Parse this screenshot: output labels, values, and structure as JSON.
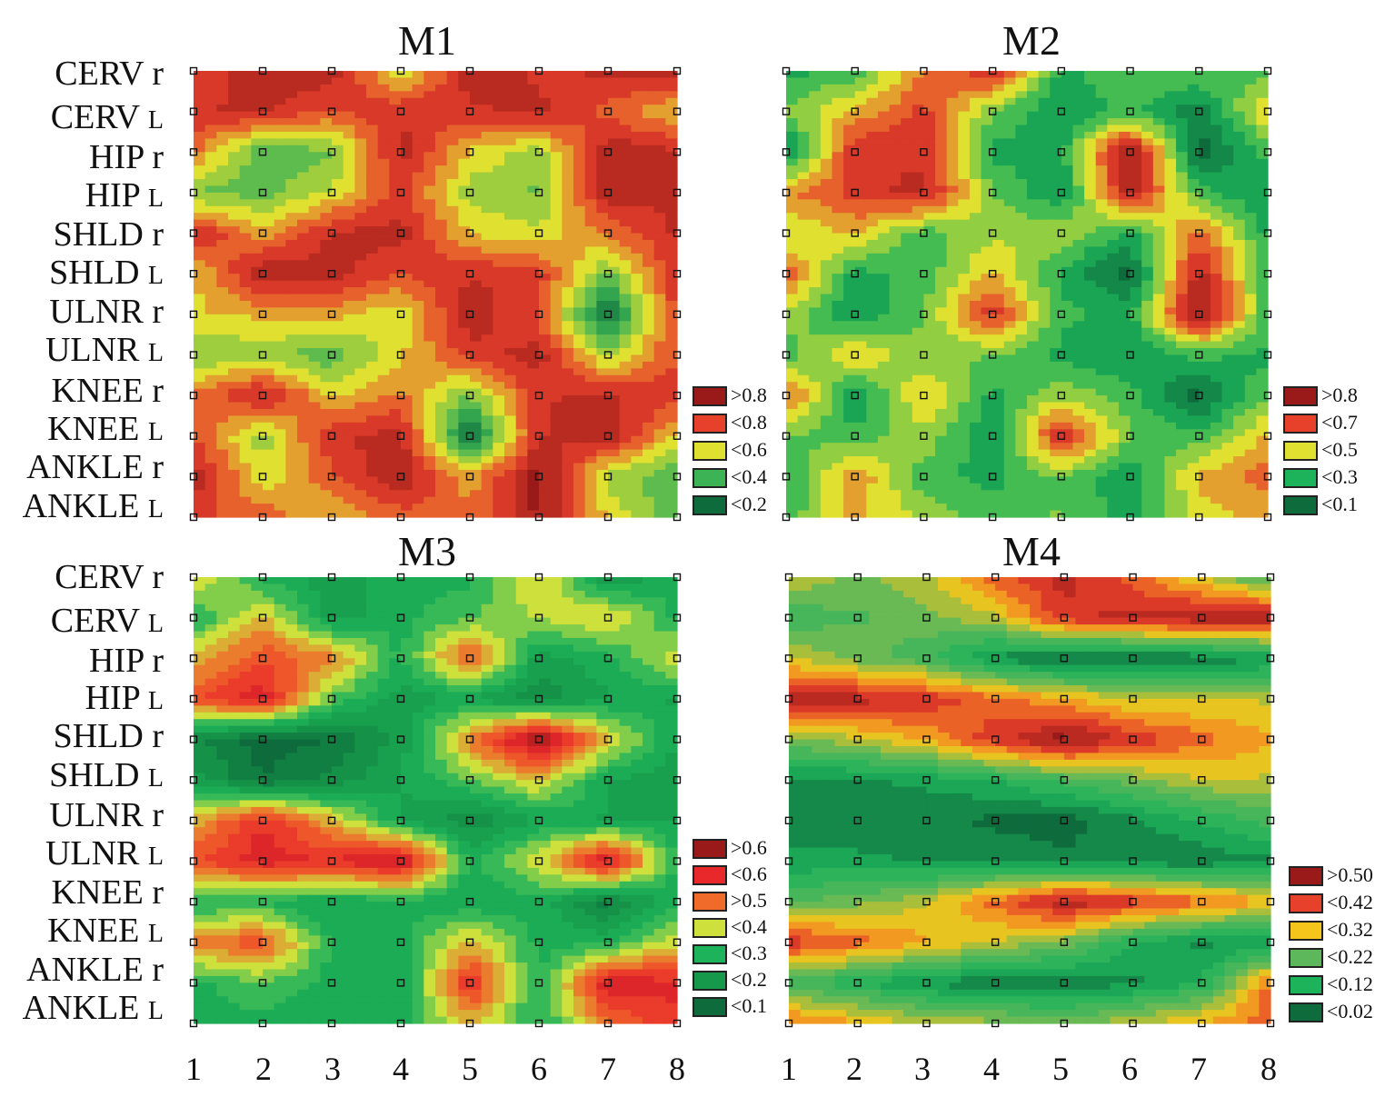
{
  "figure": {
    "row_labels": [
      {
        "name": "CERV",
        "side": "r"
      },
      {
        "name": "CERV",
        "side": "L"
      },
      {
        "name": "HIP",
        "side": "r"
      },
      {
        "name": "HIP",
        "side": "L"
      },
      {
        "name": "SHLD",
        "side": "r"
      },
      {
        "name": "SHLD",
        "side": "L"
      },
      {
        "name": "ULNR",
        "side": "r"
      },
      {
        "name": "ULNR",
        "side": "L"
      },
      {
        "name": "KNEE",
        "side": "r"
      },
      {
        "name": "KNEE",
        "side": "L"
      },
      {
        "name": "ANKLE",
        "side": "r"
      },
      {
        "name": "ANKLE",
        "side": "L"
      }
    ],
    "col_labels": [
      "1",
      "2",
      "3",
      "4",
      "5",
      "6",
      "7",
      "8"
    ]
  },
  "chart_data": [
    {
      "type": "heatmap",
      "title": "M1",
      "x": [
        1,
        2,
        3,
        4,
        5,
        6,
        7,
        8
      ],
      "y": [
        "CERV r",
        "CERV L",
        "HIP r",
        "HIP L",
        "SHLD r",
        "SHLD L",
        "ULNR r",
        "ULNR L",
        "KNEE r",
        "KNEE L",
        "ANKLE r",
        "ANKLE L"
      ],
      "legend": [
        {
          "label": ">0.8",
          "color": "#9a1a1a"
        },
        {
          "label": "<0.8",
          "color": "#e8412b"
        },
        {
          "label": "<0.6",
          "color": "#e0e030"
        },
        {
          "label": "<0.4",
          "color": "#3cb354"
        },
        {
          "label": "<0.2",
          "color": "#0e6b3c"
        }
      ],
      "values": [
        [
          0.75,
          0.82,
          0.84,
          0.5,
          0.82,
          0.78,
          0.8,
          0.86
        ],
        [
          0.78,
          0.8,
          0.7,
          0.78,
          0.78,
          0.8,
          0.68,
          0.55
        ],
        [
          0.65,
          0.35,
          0.4,
          0.82,
          0.55,
          0.45,
          0.85,
          0.8
        ],
        [
          0.4,
          0.38,
          0.5,
          0.75,
          0.45,
          0.4,
          0.85,
          0.8
        ],
        [
          0.8,
          0.6,
          0.8,
          0.82,
          0.55,
          0.5,
          0.65,
          0.8
        ],
        [
          0.55,
          0.85,
          0.82,
          0.72,
          0.78,
          0.75,
          0.4,
          0.78
        ],
        [
          0.55,
          0.58,
          0.6,
          0.5,
          0.85,
          0.7,
          0.15,
          0.75
        ],
        [
          0.4,
          0.45,
          0.35,
          0.55,
          0.75,
          0.82,
          0.45,
          0.72
        ],
        [
          0.65,
          0.82,
          0.55,
          0.65,
          0.4,
          0.78,
          0.8,
          0.75
        ],
        [
          0.7,
          0.45,
          0.78,
          0.82,
          0.15,
          0.78,
          0.85,
          0.55
        ],
        [
          0.85,
          0.5,
          0.7,
          0.85,
          0.6,
          0.9,
          0.45,
          0.35
        ],
        [
          0.72,
          0.7,
          0.55,
          0.68,
          0.65,
          0.88,
          0.55,
          0.35
        ]
      ]
    },
    {
      "type": "heatmap",
      "title": "M2",
      "x": [
        1,
        2,
        3,
        4,
        5,
        6,
        7,
        8
      ],
      "y": [
        "CERV r",
        "CERV L",
        "HIP r",
        "HIP L",
        "SHLD r",
        "SHLD L",
        "ULNR r",
        "ULNR L",
        "KNEE r",
        "KNEE L",
        "ANKLE r",
        "ANKLE L"
      ],
      "legend": [
        {
          "label": ">0.8",
          "color": "#9a1a1a"
        },
        {
          "label": "<0.7",
          "color": "#e8412b"
        },
        {
          "label": "<0.5",
          "color": "#e0e030"
        },
        {
          "label": "<0.3",
          "color": "#1db35a"
        },
        {
          "label": "<0.1",
          "color": "#0e6b3c"
        }
      ],
      "values": [
        [
          0.3,
          0.35,
          0.6,
          0.75,
          0.3,
          0.4,
          0.4,
          0.35
        ],
        [
          0.4,
          0.55,
          0.7,
          0.4,
          0.25,
          0.35,
          0.2,
          0.55
        ],
        [
          0.2,
          0.75,
          0.72,
          0.3,
          0.3,
          0.85,
          0.15,
          0.35
        ],
        [
          0.6,
          0.7,
          0.78,
          0.4,
          0.25,
          0.8,
          0.35,
          0.25
        ],
        [
          0.45,
          0.55,
          0.35,
          0.45,
          0.45,
          0.3,
          0.65,
          0.3
        ],
        [
          0.65,
          0.3,
          0.35,
          0.55,
          0.3,
          0.15,
          0.78,
          0.35
        ],
        [
          0.45,
          0.25,
          0.4,
          0.72,
          0.35,
          0.3,
          0.85,
          0.35
        ],
        [
          0.35,
          0.55,
          0.4,
          0.4,
          0.3,
          0.25,
          0.35,
          0.3
        ],
        [
          0.65,
          0.25,
          0.55,
          0.3,
          0.45,
          0.35,
          0.15,
          0.4
        ],
        [
          0.4,
          0.35,
          0.45,
          0.25,
          0.75,
          0.4,
          0.35,
          0.55
        ],
        [
          0.3,
          0.6,
          0.35,
          0.3,
          0.4,
          0.25,
          0.55,
          0.65
        ],
        [
          0.35,
          0.55,
          0.45,
          0.35,
          0.4,
          0.3,
          0.5,
          0.55
        ]
      ]
    },
    {
      "type": "heatmap",
      "title": "M3",
      "x": [
        1,
        2,
        3,
        4,
        5,
        6,
        7,
        8
      ],
      "y": [
        "CERV r",
        "CERV L",
        "HIP r",
        "HIP L",
        "SHLD r",
        "SHLD L",
        "ULNR r",
        "ULNR L",
        "KNEE r",
        "KNEE L",
        "ANKLE r",
        "ANKLE L"
      ],
      "legend": [
        {
          "label": ">0.6",
          "color": "#9a1a1a"
        },
        {
          "label": "<0.6",
          "color": "#e8282b"
        },
        {
          "label": ">0.5",
          "color": "#f06a2a"
        },
        {
          "label": "<0.4",
          "color": "#cde03c"
        },
        {
          "label": "<0.3",
          "color": "#1db35a"
        },
        {
          "label": "<0.2",
          "color": "#16994a"
        },
        {
          "label": "<0.1",
          "color": "#0e6b3c"
        }
      ],
      "values": [
        [
          0.4,
          0.25,
          0.2,
          0.25,
          0.25,
          0.4,
          0.18,
          0.25
        ],
        [
          0.25,
          0.4,
          0.2,
          0.25,
          0.3,
          0.35,
          0.4,
          0.25
        ],
        [
          0.4,
          0.5,
          0.45,
          0.25,
          0.5,
          0.2,
          0.25,
          0.38
        ],
        [
          0.5,
          0.58,
          0.3,
          0.2,
          0.22,
          0.15,
          0.22,
          0.22
        ],
        [
          0.15,
          0.08,
          0.1,
          0.2,
          0.45,
          0.65,
          0.4,
          0.22
        ],
        [
          0.2,
          0.1,
          0.15,
          0.22,
          0.3,
          0.4,
          0.22,
          0.2
        ],
        [
          0.4,
          0.55,
          0.4,
          0.22,
          0.15,
          0.22,
          0.22,
          0.22
        ],
        [
          0.5,
          0.58,
          0.55,
          0.62,
          0.25,
          0.38,
          0.6,
          0.25
        ],
        [
          0.25,
          0.25,
          0.22,
          0.25,
          0.22,
          0.25,
          0.12,
          0.25
        ],
        [
          0.45,
          0.5,
          0.25,
          0.25,
          0.4,
          0.25,
          0.25,
          0.38
        ],
        [
          0.25,
          0.3,
          0.25,
          0.22,
          0.55,
          0.25,
          0.6,
          0.55
        ],
        [
          0.25,
          0.25,
          0.22,
          0.25,
          0.4,
          0.25,
          0.45,
          0.55
        ]
      ]
    },
    {
      "type": "heatmap",
      "title": "M4",
      "x": [
        1,
        2,
        3,
        4,
        5,
        6,
        7,
        8
      ],
      "y": [
        "CERV r",
        "CERV L",
        "HIP r",
        "HIP L",
        "SHLD r",
        "SHLD L",
        "ULNR r",
        "ULNR L",
        "KNEE r",
        "KNEE L",
        "ANKLE r",
        "ANKLE L"
      ],
      "legend": [
        {
          "label": ">0.50",
          "color": "#9a1a1a"
        },
        {
          "label": "<0.42",
          "color": "#e8412b"
        },
        {
          "label": "<0.32",
          "color": "#f5c51c"
        },
        {
          "label": "<0.22",
          "color": "#5cb85a"
        },
        {
          "label": "<0.12",
          "color": "#1db35a"
        },
        {
          "label": "<0.02",
          "color": "#0e6b3c"
        }
      ],
      "values": [
        [
          0.3,
          0.25,
          0.3,
          0.4,
          0.48,
          0.4,
          0.3,
          0.2
        ],
        [
          0.2,
          0.22,
          0.25,
          0.3,
          0.45,
          0.48,
          0.5,
          0.5
        ],
        [
          0.3,
          0.25,
          0.2,
          0.1,
          0.05,
          0.05,
          0.08,
          0.1
        ],
        [
          0.5,
          0.48,
          0.45,
          0.4,
          0.35,
          0.3,
          0.3,
          0.3
        ],
        [
          0.25,
          0.3,
          0.35,
          0.45,
          0.52,
          0.45,
          0.4,
          0.35
        ],
        [
          0.1,
          0.1,
          0.12,
          0.15,
          0.2,
          0.25,
          0.3,
          0.3
        ],
        [
          0.08,
          0.08,
          0.08,
          0.06,
          0.05,
          0.1,
          0.15,
          0.2
        ],
        [
          0.12,
          0.12,
          0.1,
          0.1,
          0.08,
          0.08,
          0.08,
          0.1
        ],
        [
          0.22,
          0.25,
          0.3,
          0.4,
          0.5,
          0.45,
          0.4,
          0.35
        ],
        [
          0.45,
          0.4,
          0.35,
          0.3,
          0.25,
          0.15,
          0.1,
          0.1
        ],
        [
          0.2,
          0.15,
          0.1,
          0.08,
          0.08,
          0.1,
          0.15,
          0.4
        ],
        [
          0.4,
          0.35,
          0.3,
          0.28,
          0.25,
          0.3,
          0.35,
          0.4
        ]
      ]
    }
  ]
}
